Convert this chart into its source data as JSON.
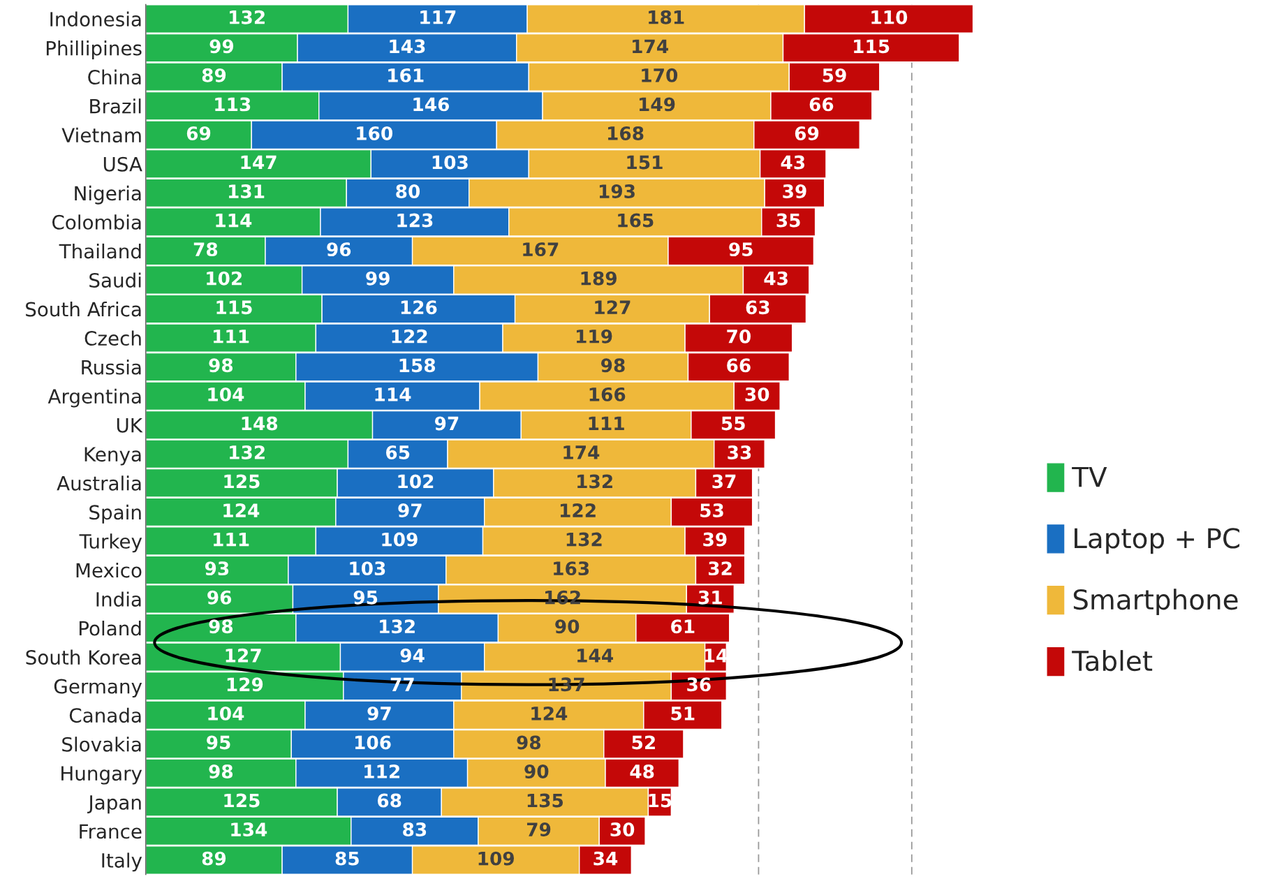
{
  "chart_data": {
    "type": "bar",
    "orientation": "horizontal",
    "stacked": true,
    "data_labels": true,
    "tick_labels": "y",
    "legend": "right",
    "grid": false,
    "categories": [
      "Indonesia",
      "Phillipines",
      "China",
      "Brazil",
      "Vietnam",
      "USA",
      "Nigeria",
      "Colombia",
      "Thailand",
      "Saudi",
      "South Africa",
      "Czech",
      "Russia",
      "Argentina",
      "UK",
      "Kenya",
      "Australia",
      "Spain",
      "Turkey",
      "Mexico",
      "India",
      "Poland",
      "South Korea",
      "Germany",
      "Canada",
      "Slovakia",
      "Hungary",
      "Japan",
      "France",
      "Italy"
    ],
    "series": [
      {
        "name": "TV",
        "color": "#22b54e",
        "values": [
          132,
          99,
          89,
          113,
          69,
          147,
          131,
          114,
          78,
          102,
          115,
          111,
          98,
          104,
          148,
          132,
          125,
          124,
          111,
          93,
          96,
          98,
          127,
          129,
          104,
          95,
          98,
          125,
          134,
          89
        ]
      },
      {
        "name": "Laptop + PC",
        "color": "#1a6fc2",
        "values": [
          117,
          143,
          161,
          146,
          160,
          103,
          80,
          123,
          96,
          99,
          126,
          122,
          158,
          114,
          97,
          65,
          102,
          97,
          109,
          103,
          95,
          132,
          94,
          77,
          97,
          106,
          112,
          68,
          83,
          85
        ]
      },
      {
        "name": "Smartphone",
        "color": "#efb83a",
        "values": [
          181,
          174,
          170,
          149,
          168,
          151,
          193,
          165,
          167,
          189,
          127,
          119,
          98,
          166,
          111,
          174,
          132,
          122,
          132,
          163,
          162,
          90,
          144,
          137,
          124,
          98,
          90,
          135,
          79,
          109
        ]
      },
      {
        "name": "Tablet",
        "color": "#c40808",
        "values": [
          110,
          115,
          59,
          66,
          69,
          43,
          39,
          35,
          95,
          43,
          63,
          70,
          66,
          30,
          55,
          33,
          37,
          53,
          39,
          32,
          31,
          61,
          14,
          36,
          51,
          52,
          48,
          15,
          30,
          34
        ]
      }
    ],
    "ref_lines": [
      {
        "axis": "x",
        "value": 400,
        "color": "#999999",
        "line_style": "dashed"
      },
      {
        "axis": "x",
        "value": 500,
        "color": "#999999",
        "line_style": "dashed"
      }
    ]
  }
}
